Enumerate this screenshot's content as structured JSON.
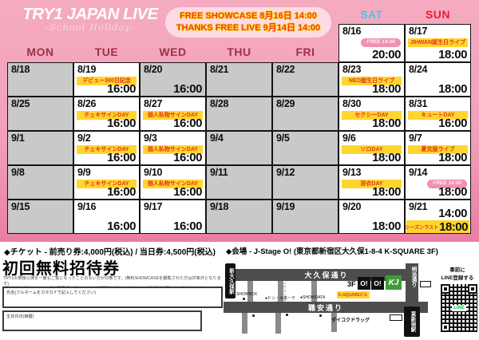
{
  "header": {
    "logo_title": "TRY1 JAPAN LIVE",
    "logo_subtitle": "-School Holiday-",
    "free_badge_line1": "FREE SHOWCASE 8月16日 14:00",
    "free_badge_line2": "THANKS FREE LIVE 9月14日 14:00"
  },
  "colors": {
    "weekday_header": "#9c3246",
    "sat_blue": "#41c6f2",
    "sun_red": "#ee1c2e",
    "badge_yellow": "#ffd52e",
    "badge_text_red": "#e8321f",
    "gray_cell": "#c9c9c9",
    "pink_background": "#f2a0b8"
  },
  "calendar": {
    "day_headers": [
      {
        "label": "MON",
        "color": "#9c3246",
        "col": 0,
        "top_row": false
      },
      {
        "label": "TUE",
        "color": "#9c3246",
        "col": 1,
        "top_row": false
      },
      {
        "label": "WED",
        "color": "#9c3246",
        "col": 2,
        "top_row": false
      },
      {
        "label": "THU",
        "color": "#9c3246",
        "col": 3,
        "top_row": false
      },
      {
        "label": "FRI",
        "color": "#9c3246",
        "col": 4,
        "top_row": false
      },
      {
        "label": "SAT",
        "color": "#41c6f2",
        "col": 5,
        "top_row": true
      },
      {
        "label": "SUN",
        "color": "#ee1c2e",
        "col": 6,
        "top_row": true
      }
    ],
    "cells": [
      {
        "date": "8/16",
        "col": 5,
        "row": 0,
        "bg": "white",
        "free_badge": "FREE 14:00",
        "time": "20:00"
      },
      {
        "date": "8/17",
        "col": 6,
        "row": 0,
        "bg": "white",
        "event": "JIHWAN誕生日ライブ",
        "time": "18:00"
      },
      {
        "date": "8/18",
        "col": 0,
        "row": 1,
        "bg": "gray"
      },
      {
        "date": "8/19",
        "col": 1,
        "row": 1,
        "bg": "white",
        "event": "デビュー300日記念",
        "time": "16:00"
      },
      {
        "date": "8/20",
        "col": 2,
        "row": 1,
        "bg": "gray",
        "time": "16:00"
      },
      {
        "date": "8/21",
        "col": 3,
        "row": 1,
        "bg": "gray"
      },
      {
        "date": "8/22",
        "col": 4,
        "row": 1,
        "bg": "gray"
      },
      {
        "date": "8/23",
        "col": 5,
        "row": 1,
        "bg": "white",
        "event": "NEO誕生日ライブ",
        "time": "18:00"
      },
      {
        "date": "8/24",
        "col": 6,
        "row": 1,
        "bg": "white",
        "time": "18:00"
      },
      {
        "date": "8/25",
        "col": 0,
        "row": 2,
        "bg": "gray"
      },
      {
        "date": "8/26",
        "col": 1,
        "row": 2,
        "bg": "white",
        "event": "チェキサインDAY",
        "time": "16:00"
      },
      {
        "date": "8/27",
        "col": 2,
        "row": 2,
        "bg": "white",
        "event": "個人私物サインDAY",
        "time": "16:00"
      },
      {
        "date": "8/28",
        "col": 3,
        "row": 2,
        "bg": "gray"
      },
      {
        "date": "8/29",
        "col": 4,
        "row": 2,
        "bg": "gray"
      },
      {
        "date": "8/30",
        "col": 5,
        "row": 2,
        "bg": "white",
        "event": "セクシーDAY",
        "time": "18:00"
      },
      {
        "date": "8/31",
        "col": 6,
        "row": 2,
        "bg": "white",
        "event": "キュートDAY",
        "time": "16:00"
      },
      {
        "date": "9/1",
        "col": 0,
        "row": 3,
        "bg": "gray"
      },
      {
        "date": "9/2",
        "col": 1,
        "row": 3,
        "bg": "white",
        "event": "チェキサインDAY",
        "time": "16:00"
      },
      {
        "date": "9/3",
        "col": 2,
        "row": 3,
        "bg": "white",
        "event": "個人私物サインDAY",
        "time": "16:00"
      },
      {
        "date": "9/4",
        "col": 3,
        "row": 3,
        "bg": "gray"
      },
      {
        "date": "9/5",
        "col": 4,
        "row": 3,
        "bg": "gray"
      },
      {
        "date": "9/6",
        "col": 5,
        "row": 3,
        "bg": "white",
        "event": "ソロDAY",
        "time": "18:00"
      },
      {
        "date": "9/7",
        "col": 6,
        "row": 3,
        "bg": "white",
        "event": "夏克服ライブ",
        "time": "18:00"
      },
      {
        "date": "9/8",
        "col": 0,
        "row": 4,
        "bg": "gray"
      },
      {
        "date": "9/9",
        "col": 1,
        "row": 4,
        "bg": "white",
        "event": "チェキサインDAY",
        "time": "16:00"
      },
      {
        "date": "9/10",
        "col": 2,
        "row": 4,
        "bg": "white",
        "event": "個人私物サインDAY",
        "time": "16:00"
      },
      {
        "date": "9/11",
        "col": 3,
        "row": 4,
        "bg": "gray"
      },
      {
        "date": "9/12",
        "col": 4,
        "row": 4,
        "bg": "gray"
      },
      {
        "date": "9/13",
        "col": 5,
        "row": 4,
        "bg": "white",
        "event": "浴衣DAY",
        "time": "18:00"
      },
      {
        "date": "9/14",
        "col": 6,
        "row": 4,
        "bg": "white",
        "free_badge": "FREE 14:00",
        "time": "18:00"
      },
      {
        "date": "9/15",
        "col": 0,
        "row": 5,
        "bg": "gray"
      },
      {
        "date": "9/16",
        "col": 1,
        "row": 5,
        "bg": "white",
        "time": "16:00"
      },
      {
        "date": "9/17",
        "col": 2,
        "row": 5,
        "bg": "white",
        "time": "16:00"
      },
      {
        "date": "9/18",
        "col": 3,
        "row": 5,
        "bg": "gray"
      },
      {
        "date": "9/19",
        "col": 4,
        "row": 5,
        "bg": "gray"
      },
      {
        "date": "9/20",
        "col": 5,
        "row": 5,
        "bg": "white",
        "time": "18:00"
      },
      {
        "date": "9/21",
        "col": 6,
        "row": 5,
        "bg": "white",
        "time": "14:00",
        "extra": {
          "label": "シーズンラスト",
          "time": "18:00"
        }
      }
    ]
  },
  "footer": {
    "ticket_line": "◆チケット - 前売り券:4,000円(税込) / 当日券:4,500円(税込)",
    "venue_line": "◆会場 - J-Stage O! (東京都新宿区大久保1-8-4 K-SQUARE 3F)",
    "invite_title": "初回無料招待券",
    "fineprint_line1": "TRY1の単独公演を一度もご覧になったことのない方が対象です。(無料SHOWCASEを観覧された方は対象外となります)",
    "fineprint_line2": "観覧希望の場合には、下記必要事項の記入と、身分証明書の提示、公式LINEの登録が必要です。開演後20分までのご入場が可能です。(1日のみ有効)",
    "name_field_label": "氏名(フルネームをカタカナで記入してください)",
    "birth_field_label": "生年月日(西暦)"
  },
  "map": {
    "okubo_dori": "大久保通り",
    "shokuan_dori": "職安通り",
    "meiji_dori": "明治通り",
    "shin_okubo_station": "新大久保駅",
    "higashi_shinjuku_station": "東新宿駅",
    "ikemen_dori": "イケメン通り",
    "landmark_showbox": "SHOWBOX",
    "landmark_donki": "●ドン・キホーテ",
    "landmark_showdata": "●SHOWDATA",
    "landmark_daikoku": "ダイコクドラッグ",
    "venue_floor": "3F",
    "venue_logo_o1": "O!",
    "venue_logo_o2": "O!",
    "venue_logo_kj": "KJ",
    "venue_building": "K-SQUAREビル",
    "line_note_line1": "事前に",
    "line_note_line2": "LINE登録する",
    "qr_center_label": "LINE"
  }
}
